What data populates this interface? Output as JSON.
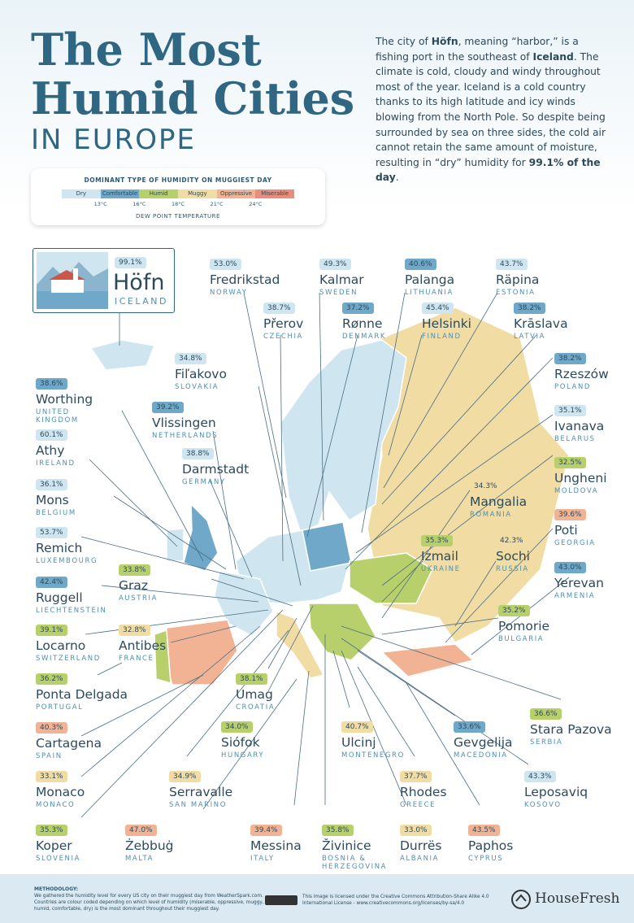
{
  "header": {
    "title_line1": "The Most",
    "title_line2": "Humid Cities",
    "title_line3": "IN EUROPE",
    "intro": [
      "The city of ",
      "Höfn",
      ", meaning “harbor,” is a fishing port in the southeast of ",
      "Iceland",
      ". The climate is cold, cloudy and windy throughout most of the year. Iceland is a cold country thanks to its high latitude and icy winds blowing from the North Pole. So despite being surrounded by sea on three sides, the cold air cannot retain the same amount of moisture, resulting in “dry” humidity for ",
      "99.1% of the day",
      "."
    ]
  },
  "legend": {
    "title": "DOMINANT TYPE OF HUMIDITY ON MUGGIEST DAY",
    "categories": [
      {
        "label": "Dry",
        "color": "#cfe6f1"
      },
      {
        "label": "Comfortable",
        "color": "#6fa8c8"
      },
      {
        "label": "Humid",
        "color": "#b8d06c"
      },
      {
        "label": "Muggy",
        "color": "#f1dca4"
      },
      {
        "label": "Oppressive",
        "color": "#f1b394"
      },
      {
        "label": "Miserable",
        "color": "#e98e7c"
      }
    ],
    "thresholds": [
      "13°C",
      "16°C",
      "18°C",
      "21°C",
      "24°C"
    ],
    "axis_label": "DEW POINT TEMPERATURE"
  },
  "featured": {
    "value": "99.1%",
    "name": "Höfn",
    "country": "ICELAND",
    "color": "#cfe6f1"
  },
  "cities": [
    {
      "value": "53.0%",
      "name": "Fredrikstad",
      "country": "NORWAY",
      "color": "#cfe6f1"
    },
    {
      "value": "49.3%",
      "name": "Kalmar",
      "country": "SWEDEN",
      "color": "#cfe6f1"
    },
    {
      "value": "40.6%",
      "name": "Palanga",
      "country": "LITHUANIA",
      "color": "#6fa8c8"
    },
    {
      "value": "43.7%",
      "name": "Räpina",
      "country": "ESTONIA",
      "color": "#cfe6f1"
    },
    {
      "value": "38.7%",
      "name": "Přerov",
      "country": "CZECHIA",
      "color": "#cfe6f1"
    },
    {
      "value": "37.2%",
      "name": "Rønne",
      "country": "DENMARK",
      "color": "#6fa8c8"
    },
    {
      "value": "45.4%",
      "name": "Helsinki",
      "country": "FINLAND",
      "color": "#cfe6f1"
    },
    {
      "value": "38.2%",
      "name": "Krāslava",
      "country": "LATVIA",
      "color": "#6fa8c8"
    },
    {
      "value": "34.8%",
      "name": "Fiľakovo",
      "country": "SLOVAKIA",
      "color": "#cfe6f1"
    },
    {
      "value": "38.2%",
      "name": "Rzeszów",
      "country": "POLAND",
      "color": "#6fa8c8"
    },
    {
      "value": "38.6%",
      "name": "Worthing",
      "country": "UNITED KINGDOM",
      "color": "#6fa8c8"
    },
    {
      "value": "39.2%",
      "name": "Vlissingen",
      "country": "NETHERLANDS",
      "color": "#6fa8c8"
    },
    {
      "value": "35.1%",
      "name": "Ivanava",
      "country": "BELARUS",
      "color": "#cfe6f1"
    },
    {
      "value": "60.1%",
      "name": "Athy",
      "country": "IRELAND",
      "color": "#cfe6f1"
    },
    {
      "value": "38.8%",
      "name": "Darmstadt",
      "country": "GERMANY",
      "color": "#cfe6f1"
    },
    {
      "value": "32.5%",
      "name": "Ungheni",
      "country": "MOLDOVA",
      "color": "#b8d06c"
    },
    {
      "value": "34.3%",
      "name": "Mangalia",
      "country": "ROMANIA",
      "color": "#f1dca4"
    },
    {
      "value": "36.1%",
      "name": "Mons",
      "country": "BELGIUM",
      "color": "#cfe6f1"
    },
    {
      "value": "39.6%",
      "name": "Poti",
      "country": "GEORGIA",
      "color": "#f1b394"
    },
    {
      "value": "53.7%",
      "name": "Remich",
      "country": "LUXEMBOURG",
      "color": "#cfe6f1"
    },
    {
      "value": "35.3%",
      "name": "Izmail",
      "country": "UKRAINE",
      "color": "#b8d06c"
    },
    {
      "value": "42.3%",
      "name": "Sochi",
      "country": "RUSSIA",
      "color": "#f1dca4"
    },
    {
      "value": "43.0%",
      "name": "Yerevan",
      "country": "ARMENIA",
      "color": "#6fa8c8"
    },
    {
      "value": "33.8%",
      "name": "Graz",
      "country": "AUSTRIA",
      "color": "#b8d06c"
    },
    {
      "value": "42.4%",
      "name": "Ruggell",
      "country": "LIECHTENSTEIN",
      "color": "#6fa8c8"
    },
    {
      "value": "35.2%",
      "name": "Pomorie",
      "country": "BULGARIA",
      "color": "#b8d06c"
    },
    {
      "value": "39.1%",
      "name": "Locarno",
      "country": "SWITZERLAND",
      "color": "#b8d06c"
    },
    {
      "value": "32.8%",
      "name": "Antibes",
      "country": "FRANCE",
      "color": "#f1dca4"
    },
    {
      "value": "36.2%",
      "name": "Ponta Delgada",
      "country": "PORTUGAL",
      "color": "#b8d06c"
    },
    {
      "value": "38.1%",
      "name": "Umag",
      "country": "CROATIA",
      "color": "#b8d06c"
    },
    {
      "value": "36.6%",
      "name": "Stara Pazova",
      "country": "SERBIA",
      "color": "#b8d06c"
    },
    {
      "value": "40.3%",
      "name": "Cartagena",
      "country": "SPAIN",
      "color": "#f1b394"
    },
    {
      "value": "34.0%",
      "name": "Siófok",
      "country": "HUNGARY",
      "color": "#b8d06c"
    },
    {
      "value": "40.7%",
      "name": "Ulcinj",
      "country": "MONTENEGRO",
      "color": "#f1dca4"
    },
    {
      "value": "33.6%",
      "name": "Gevgelija",
      "country": "MACEDONIA",
      "color": "#6fa8c8"
    },
    {
      "value": "33.1%",
      "name": "Monaco",
      "country": "MONACO",
      "color": "#f1dca4"
    },
    {
      "value": "34.9%",
      "name": "Serravalle",
      "country": "SAN MARINO",
      "color": "#f1dca4"
    },
    {
      "value": "37.7%",
      "name": "Rhodes",
      "country": "GREECE",
      "color": "#f1dca4"
    },
    {
      "value": "43.3%",
      "name": "Leposaviq",
      "country": "KOSOVO",
      "color": "#cfe6f1"
    },
    {
      "value": "35.3%",
      "name": "Koper",
      "country": "SLOVENIA",
      "color": "#b8d06c"
    },
    {
      "value": "47.0%",
      "name": "Żebbuġ",
      "country": "MALTA",
      "color": "#f1b394"
    },
    {
      "value": "39.4%",
      "name": "Messina",
      "country": "ITALY",
      "color": "#f1b394"
    },
    {
      "value": "35.8%",
      "name": "Živinice",
      "country": "BOSNIA & HERZEGOVINA",
      "color": "#b8d06c"
    },
    {
      "value": "33.0%",
      "name": "Durrës",
      "country": "ALBANIA",
      "color": "#f1dca4"
    },
    {
      "value": "43.5%",
      "name": "Paphos",
      "country": "CYPRUS",
      "color": "#f1b394"
    }
  ],
  "footer": {
    "methodology_title": "METHODOLOGY:",
    "methodology": "We gathered the humidity level for every US city on their muggiest day from WeatherSpark.com. Countries are colour coded depending on which level of humidity (miserable, oppressive, muggy, humid, comfortable, dry) is the most dominant throughout their muggiest day.",
    "license": "This image is licensed under the Creative Commons Attribution-Share Alike 4.0 International License - www.creativecommons.org/licenses/by-sa/4.0",
    "brand": "HouseFresh"
  }
}
